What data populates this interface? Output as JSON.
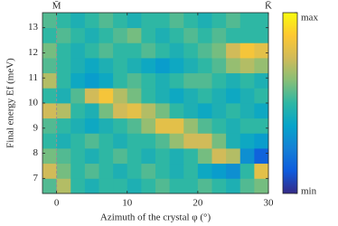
{
  "chart_data": {
    "type": "heatmap",
    "x_label": "Azimuth of the crystal φ (°)",
    "y_label": "Final energy Ef (meV)",
    "annotations": [
      {
        "text": "M̄",
        "x": 0
      },
      {
        "text": "K̄",
        "x": 30
      }
    ],
    "vlines": [
      0
    ],
    "xlim": [
      -2,
      30
    ],
    "ylim": [
      6.4,
      13.6
    ],
    "xticks": [
      0,
      10,
      20,
      30
    ],
    "yticks": [
      7,
      8,
      9,
      10,
      11,
      12,
      13
    ],
    "x_bins": [
      -2,
      0,
      2,
      4,
      6,
      8,
      10,
      12,
      14,
      16,
      18,
      20,
      22,
      24,
      26,
      28,
      30
    ],
    "y_bins": [
      6.4,
      7.0,
      7.6,
      8.2,
      8.8,
      9.4,
      10.0,
      10.6,
      11.2,
      11.8,
      12.4,
      13.0,
      13.6
    ],
    "z": [
      [
        0.55,
        0.7,
        0.5,
        0.45,
        0.5,
        0.5,
        0.45,
        0.5,
        0.55,
        0.5,
        0.5,
        0.55,
        0.5,
        0.45,
        0.55,
        0.6
      ],
      [
        0.75,
        0.6,
        0.5,
        0.55,
        0.5,
        0.45,
        0.5,
        0.55,
        0.5,
        0.45,
        0.5,
        0.4,
        0.35,
        0.3,
        0.5,
        0.8
      ],
      [
        0.6,
        0.55,
        0.5,
        0.45,
        0.5,
        0.55,
        0.5,
        0.45,
        0.5,
        0.45,
        0.5,
        0.6,
        0.75,
        0.7,
        0.3,
        0.15
      ],
      [
        0.5,
        0.45,
        0.5,
        0.55,
        0.5,
        0.45,
        0.5,
        0.5,
        0.55,
        0.65,
        0.75,
        0.75,
        0.6,
        0.45,
        0.4,
        0.35
      ],
      [
        0.55,
        0.5,
        0.45,
        0.4,
        0.45,
        0.5,
        0.55,
        0.65,
        0.8,
        0.8,
        0.65,
        0.55,
        0.5,
        0.45,
        0.5,
        0.5
      ],
      [
        0.75,
        0.7,
        0.5,
        0.45,
        0.6,
        0.75,
        0.8,
        0.7,
        0.6,
        0.5,
        0.45,
        0.4,
        0.45,
        0.5,
        0.45,
        0.4
      ],
      [
        0.5,
        0.45,
        0.55,
        0.75,
        0.85,
        0.7,
        0.6,
        0.5,
        0.45,
        0.4,
        0.45,
        0.5,
        0.45,
        0.4,
        0.45,
        0.5
      ],
      [
        0.7,
        0.5,
        0.4,
        0.35,
        0.4,
        0.5,
        0.55,
        0.5,
        0.45,
        0.5,
        0.55,
        0.55,
        0.5,
        0.45,
        0.5,
        0.45
      ],
      [
        0.55,
        0.5,
        0.45,
        0.4,
        0.45,
        0.5,
        0.45,
        0.4,
        0.35,
        0.4,
        0.45,
        0.5,
        0.55,
        0.65,
        0.7,
        0.65
      ],
      [
        0.6,
        0.5,
        0.45,
        0.5,
        0.55,
        0.5,
        0.5,
        0.55,
        0.5,
        0.45,
        0.5,
        0.55,
        0.6,
        0.75,
        0.85,
        0.8
      ],
      [
        0.5,
        0.55,
        0.5,
        0.45,
        0.5,
        0.55,
        0.6,
        0.5,
        0.45,
        0.5,
        0.55,
        0.5,
        0.55,
        0.5,
        0.5,
        0.5
      ],
      [
        0.55,
        0.5,
        0.45,
        0.5,
        0.55,
        0.5,
        0.45,
        0.5,
        0.5,
        0.55,
        0.5,
        0.45,
        0.5,
        0.55,
        0.5,
        0.5
      ]
    ],
    "zlim": [
      0,
      1
    ],
    "zticks": [
      {
        "value": 0,
        "label": "min"
      },
      {
        "value": 1,
        "label": "max"
      }
    ],
    "colormap": [
      "#352a87",
      "#0f5cdd",
      "#1481d6",
      "#06a4ca",
      "#2eb7a4",
      "#87bf77",
      "#d1bb59",
      "#fec832",
      "#f9fb0e"
    ]
  }
}
